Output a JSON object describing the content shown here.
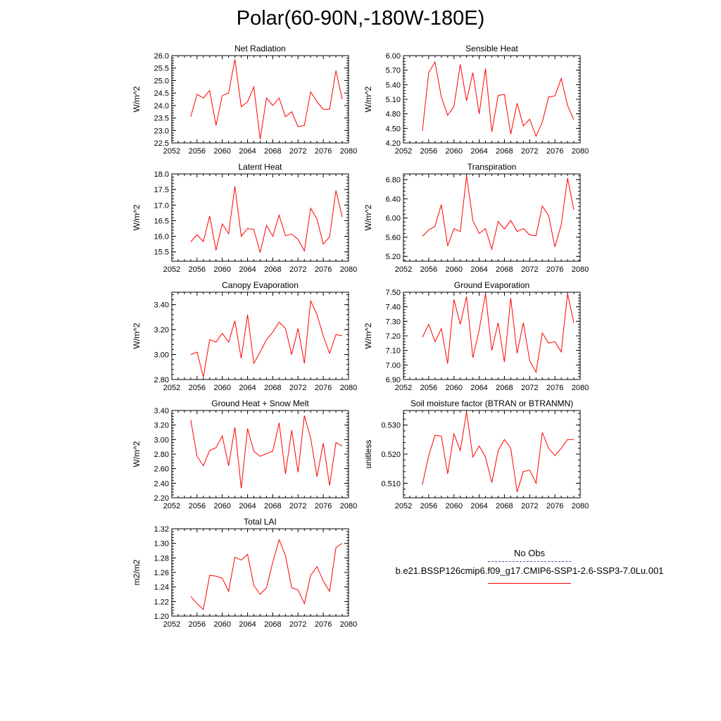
{
  "title": "Polar(60-90N,-180W-180E)",
  "legend": {
    "obs_label": "No Obs",
    "obs_color": "#5555aa",
    "case_label": "b.e21.BSSP126cmip6.f09_g17.CMIP6-SSP1-2.6-SSP3-7.0Lu.001",
    "case_color": "#ff0000"
  },
  "chart_data": [
    {
      "type": "line",
      "title": "Net Radiation",
      "ylabel": "W/m^2",
      "xlim": [
        2052,
        2080
      ],
      "ylim": [
        22.5,
        26.0
      ],
      "x_ticks": [
        "2052",
        "2056",
        "2060",
        "2064",
        "2068",
        "2072",
        "2076",
        "2080"
      ],
      "y_ticks": [
        "22.5",
        "23.0",
        "23.5",
        "24.0",
        "24.5",
        "25.0",
        "25.5",
        "26.0"
      ],
      "x": [
        2055,
        2056,
        2057,
        2058,
        2059,
        2060,
        2061,
        2062,
        2063,
        2064,
        2065,
        2066,
        2067,
        2068,
        2069,
        2070,
        2071,
        2072,
        2073,
        2074,
        2075,
        2076,
        2077,
        2078,
        2079
      ],
      "series": [
        {
          "values": [
            23.55,
            24.45,
            24.3,
            24.6,
            23.2,
            24.4,
            24.5,
            25.85,
            23.95,
            24.15,
            24.75,
            22.65,
            24.3,
            24.0,
            24.3,
            23.55,
            23.75,
            23.15,
            23.2,
            24.55,
            24.15,
            23.85,
            23.85,
            25.4,
            24.25
          ],
          "color": "#ff0000"
        }
      ]
    },
    {
      "type": "line",
      "title": "Sensible Heat",
      "ylabel": "W/m^2",
      "xlim": [
        2052,
        2080
      ],
      "ylim": [
        4.2,
        6.0
      ],
      "x_ticks": [
        "2052",
        "2056",
        "2060",
        "2064",
        "2068",
        "2072",
        "2076",
        "2080"
      ],
      "y_ticks": [
        "4.20",
        "4.50",
        "4.80",
        "5.10",
        "5.40",
        "5.70",
        "6.00"
      ],
      "x": [
        2055,
        2056,
        2057,
        2058,
        2059,
        2060,
        2061,
        2062,
        2063,
        2064,
        2065,
        2066,
        2067,
        2068,
        2069,
        2070,
        2071,
        2072,
        2073,
        2074,
        2075,
        2076,
        2077,
        2078,
        2079
      ],
      "series": [
        {
          "values": [
            4.45,
            5.65,
            5.87,
            5.15,
            4.77,
            4.95,
            5.82,
            5.07,
            5.65,
            4.8,
            5.73,
            4.43,
            5.18,
            5.2,
            4.38,
            5.02,
            4.55,
            4.69,
            4.34,
            4.63,
            5.15,
            5.17,
            5.53,
            4.97,
            4.68
          ],
          "color": "#ff0000"
        }
      ]
    },
    {
      "type": "line",
      "title": "Latent Heat",
      "ylabel": "W/m^2",
      "xlim": [
        2052,
        2080
      ],
      "ylim": [
        15.2,
        18.0
      ],
      "x_ticks": [
        "2052",
        "2056",
        "2060",
        "2064",
        "2068",
        "2072",
        "2076",
        "2080"
      ],
      "y_ticks": [
        "15.5",
        "16.0",
        "16.5",
        "17.0",
        "17.5",
        "18.0"
      ],
      "x": [
        2055,
        2056,
        2057,
        2058,
        2059,
        2060,
        2061,
        2062,
        2063,
        2064,
        2065,
        2066,
        2067,
        2068,
        2069,
        2070,
        2071,
        2072,
        2073,
        2074,
        2075,
        2076,
        2077,
        2078,
        2079
      ],
      "series": [
        {
          "values": [
            15.82,
            16.05,
            15.83,
            16.65,
            15.55,
            16.4,
            16.08,
            17.6,
            16.0,
            16.25,
            16.22,
            15.48,
            16.35,
            16.0,
            16.68,
            16.02,
            16.07,
            15.9,
            15.53,
            16.9,
            16.55,
            15.75,
            15.98,
            17.47,
            16.62
          ],
          "color": "#ff0000"
        }
      ]
    },
    {
      "type": "line",
      "title": "Transpiration",
      "ylabel": "W/m^2",
      "xlim": [
        2052,
        2080
      ],
      "ylim": [
        5.1,
        6.92
      ],
      "x_ticks": [
        "2052",
        "2056",
        "2060",
        "2064",
        "2068",
        "2072",
        "2076",
        "2080"
      ],
      "y_ticks": [
        "5.20",
        "5.60",
        "6.00",
        "6.40",
        "6.80"
      ],
      "x": [
        2055,
        2056,
        2057,
        2058,
        2059,
        2060,
        2061,
        2062,
        2063,
        2064,
        2065,
        2066,
        2067,
        2068,
        2069,
        2070,
        2071,
        2072,
        2073,
        2074,
        2075,
        2076,
        2077,
        2078,
        2079
      ],
      "series": [
        {
          "values": [
            5.62,
            5.75,
            5.83,
            6.28,
            5.42,
            5.78,
            5.72,
            6.88,
            5.95,
            5.68,
            5.78,
            5.35,
            5.93,
            5.77,
            5.95,
            5.72,
            5.78,
            5.65,
            5.63,
            6.25,
            6.05,
            5.4,
            5.86,
            6.83,
            6.17
          ],
          "color": "#ff0000"
        }
      ]
    },
    {
      "type": "line",
      "title": "Canopy Evaporation",
      "ylabel": "W/m^2",
      "xlim": [
        2052,
        2080
      ],
      "ylim": [
        2.8,
        3.5
      ],
      "x_ticks": [
        "2052",
        "2056",
        "2060",
        "2064",
        "2068",
        "2072",
        "2076",
        "2080"
      ],
      "y_ticks": [
        "2.80",
        "3.00",
        "3.20",
        "3.40"
      ],
      "x": [
        2055,
        2056,
        2057,
        2058,
        2059,
        2060,
        2061,
        2062,
        2063,
        2064,
        2065,
        2066,
        2067,
        2068,
        2069,
        2070,
        2071,
        2072,
        2073,
        2074,
        2075,
        2076,
        2077,
        2078,
        2079
      ],
      "series": [
        {
          "values": [
            3.0,
            3.02,
            2.82,
            3.12,
            3.1,
            3.17,
            3.1,
            3.27,
            2.97,
            3.32,
            2.93,
            3.02,
            3.12,
            3.18,
            3.26,
            3.21,
            3.0,
            3.21,
            2.93,
            3.43,
            3.32,
            3.15,
            3.01,
            3.16,
            3.15
          ],
          "color": "#ff0000"
        }
      ]
    },
    {
      "type": "line",
      "title": "Ground Evaporation",
      "ylabel": "W/m^2",
      "xlim": [
        2052,
        2080
      ],
      "ylim": [
        6.9,
        7.5
      ],
      "x_ticks": [
        "2052",
        "2056",
        "2060",
        "2064",
        "2068",
        "2072",
        "2076",
        "2080"
      ],
      "y_ticks": [
        "6.90",
        "7.00",
        "7.10",
        "7.20",
        "7.30",
        "7.40",
        "7.50"
      ],
      "x": [
        2055,
        2056,
        2057,
        2058,
        2059,
        2060,
        2061,
        2062,
        2063,
        2064,
        2065,
        2066,
        2067,
        2068,
        2069,
        2070,
        2071,
        2072,
        2073,
        2074,
        2075,
        2076,
        2077,
        2078,
        2079
      ],
      "series": [
        {
          "values": [
            7.19,
            7.28,
            7.16,
            7.25,
            7.01,
            7.45,
            7.28,
            7.47,
            7.05,
            7.24,
            7.49,
            7.1,
            7.29,
            7.02,
            7.46,
            7.08,
            7.29,
            7.03,
            6.95,
            7.22,
            7.15,
            7.16,
            7.09,
            7.49,
            7.29
          ],
          "color": "#ff0000"
        }
      ]
    },
    {
      "type": "line",
      "title": "Ground Heat + Snow Melt",
      "ylabel": "W/m^2",
      "xlim": [
        2052,
        2080
      ],
      "ylim": [
        2.2,
        3.4
      ],
      "x_ticks": [
        "2052",
        "2056",
        "2060",
        "2064",
        "2068",
        "2072",
        "2076",
        "2080"
      ],
      "y_ticks": [
        "2.20",
        "2.40",
        "2.60",
        "2.80",
        "3.00",
        "3.20",
        "3.40"
      ],
      "x": [
        2055,
        2056,
        2057,
        2058,
        2059,
        2060,
        2061,
        2062,
        2063,
        2064,
        2065,
        2066,
        2067,
        2068,
        2069,
        2070,
        2071,
        2072,
        2073,
        2074,
        2075,
        2076,
        2077,
        2078,
        2079
      ],
      "series": [
        {
          "values": [
            3.27,
            2.77,
            2.64,
            2.85,
            2.89,
            3.05,
            2.64,
            3.17,
            2.33,
            3.15,
            2.84,
            2.77,
            2.81,
            2.84,
            3.23,
            2.53,
            3.13,
            2.55,
            3.33,
            3.02,
            2.49,
            2.95,
            2.37,
            2.96,
            2.91
          ],
          "color": "#ff0000"
        }
      ]
    },
    {
      "type": "line",
      "title": "Soil moisture factor (BTRAN or BTRANMN)",
      "ylabel": "unitless",
      "xlim": [
        2052,
        2080
      ],
      "ylim": [
        0.505,
        0.535
      ],
      "x_ticks": [
        "2052",
        "2056",
        "2060",
        "2064",
        "2068",
        "2072",
        "2076",
        "2080"
      ],
      "y_ticks": [
        "0.510",
        "0.520",
        "0.530"
      ],
      "x": [
        2055,
        2056,
        2057,
        2058,
        2059,
        2060,
        2061,
        2062,
        2063,
        2064,
        2065,
        2066,
        2067,
        2068,
        2069,
        2070,
        2071,
        2072,
        2073,
        2074,
        2075,
        2076,
        2077,
        2078,
        2079
      ],
      "series": [
        {
          "values": [
            0.5095,
            0.5195,
            0.5265,
            0.5262,
            0.5132,
            0.527,
            0.5212,
            0.5345,
            0.519,
            0.5228,
            0.519,
            0.5102,
            0.5212,
            0.525,
            0.522,
            0.507,
            0.514,
            0.5145,
            0.51,
            0.5275,
            0.522,
            0.5195,
            0.522,
            0.525,
            0.525
          ],
          "color": "#ff0000"
        }
      ]
    },
    {
      "type": "line",
      "title": "Total LAI",
      "ylabel": "m2/m2",
      "xlim": [
        2052,
        2080
      ],
      "ylim": [
        1.2,
        1.32
      ],
      "x_ticks": [
        "2052",
        "2056",
        "2060",
        "2064",
        "2068",
        "2072",
        "2076",
        "2080"
      ],
      "y_ticks": [
        "1.20",
        "1.22",
        "1.24",
        "1.26",
        "1.28",
        "1.30",
        "1.32"
      ],
      "x": [
        2055,
        2056,
        2057,
        2058,
        2059,
        2060,
        2061,
        2062,
        2063,
        2064,
        2065,
        2066,
        2067,
        2068,
        2069,
        2070,
        2071,
        2072,
        2073,
        2074,
        2075,
        2076,
        2077,
        2078,
        2079
      ],
      "series": [
        {
          "values": [
            1.227,
            1.217,
            1.209,
            1.256,
            1.255,
            1.252,
            1.234,
            1.281,
            1.277,
            1.285,
            1.242,
            1.23,
            1.239,
            1.274,
            1.305,
            1.283,
            1.239,
            1.236,
            1.217,
            1.256,
            1.268,
            1.248,
            1.234,
            1.294,
            1.3
          ],
          "color": "#ff0000"
        }
      ]
    }
  ]
}
